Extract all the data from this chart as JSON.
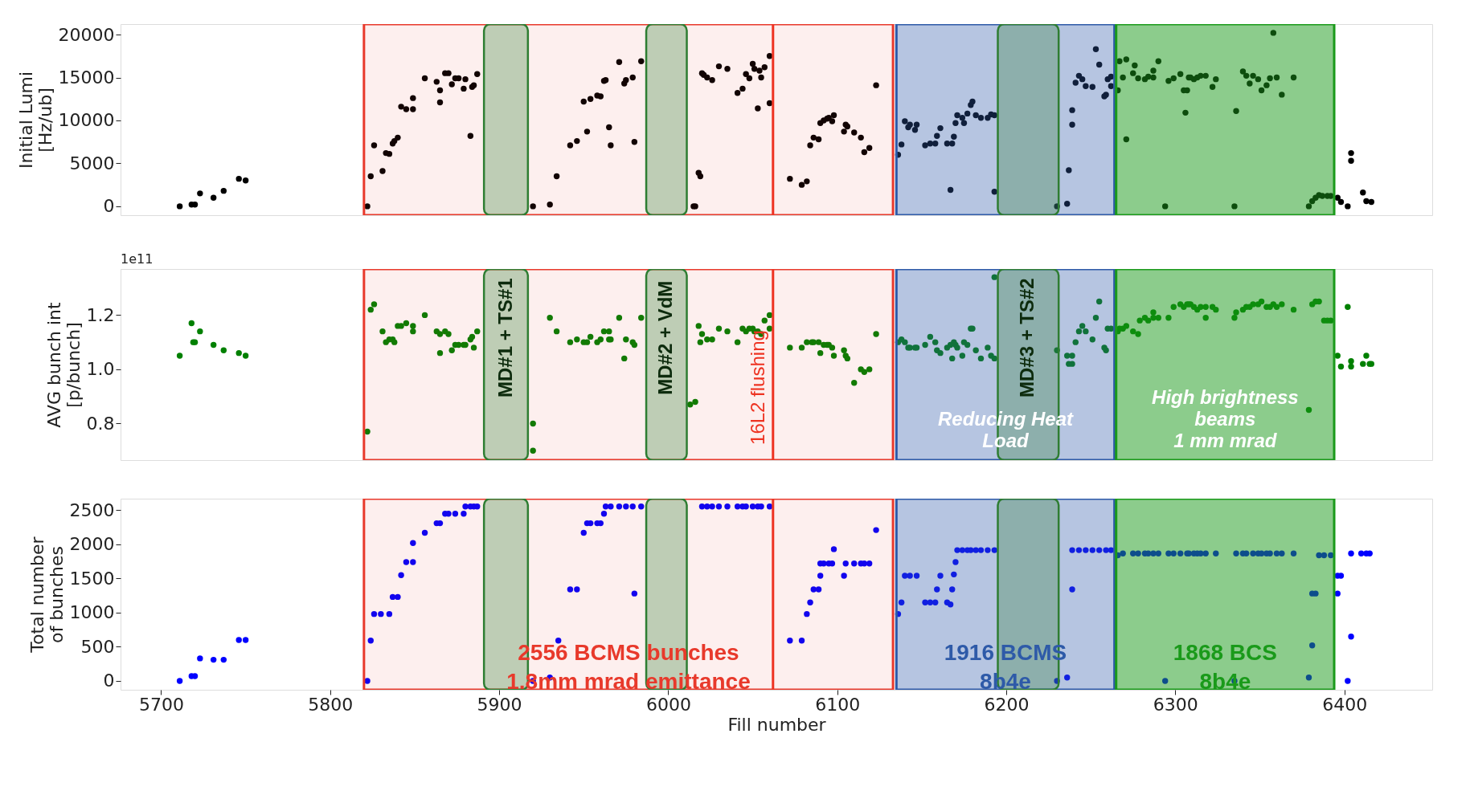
{
  "chart_data": [
    {
      "type": "scatter",
      "ylabel": "Initial Lumi\n[Hz/ub]",
      "color": "#000000",
      "marker": "circle",
      "xlim": [
        5676,
        6452
      ],
      "ylim": [
        -1040,
        21220
      ],
      "xticks": [
        5700,
        5800,
        5900,
        6000,
        6100,
        6200,
        6300,
        6400
      ],
      "yticks": [
        0,
        5000,
        10000,
        15000,
        20000
      ],
      "tick_labels": "y",
      "x": [
        5711,
        5718,
        5720,
        5723,
        5731,
        5737,
        5746,
        5750,
        5822,
        5824,
        5826,
        5831,
        5833,
        5835,
        5837,
        5838,
        5840,
        5842,
        5845,
        5849,
        5849,
        5856,
        5863,
        5865,
        5865,
        5868,
        5870,
        5872,
        5874,
        5876,
        5879,
        5880,
        5883,
        5884,
        5885,
        5887,
        5920,
        5930,
        5934,
        5942,
        5946,
        5950,
        5952,
        5954,
        5958,
        5960,
        5962,
        5963,
        5965,
        5966,
        5971,
        5974,
        5975,
        5979,
        5980,
        5984,
        6015,
        6016,
        6018,
        6019,
        6020,
        6021,
        6023,
        6026,
        6030,
        6035,
        6041,
        6044,
        6046,
        6048,
        6050,
        6051,
        6053,
        6054,
        6055,
        6057,
        6060,
        6060,
        6072,
        6079,
        6082,
        6084,
        6086,
        6089,
        6090,
        6092,
        6094,
        6095,
        6097,
        6098,
        6104,
        6105,
        6106,
        6110,
        6114,
        6116,
        6119,
        6123,
        6136,
        6138,
        6140,
        6142,
        6143,
        6146,
        6147,
        6152,
        6155,
        6158,
        6159,
        6161,
        6165,
        6167,
        6168,
        6169,
        6170,
        6171,
        6174,
        6175,
        6177,
        6179,
        6180,
        6182,
        6185,
        6189,
        6191,
        6193,
        6193,
        6230,
        6236,
        6237,
        6239,
        6239,
        6241,
        6243,
        6245,
        6247,
        6251,
        6253,
        6255,
        6258,
        6259,
        6260,
        6262,
        6262,
        6266,
        6267,
        6269,
        6271,
        6271,
        6275,
        6276,
        6278,
        6282,
        6284,
        6287,
        6287,
        6290,
        6294,
        6296,
        6299,
        6303,
        6305,
        6306,
        6307,
        6308,
        6309,
        6311,
        6313,
        6315,
        6318,
        6322,
        6324,
        6335,
        6336,
        6340,
        6342,
        6344,
        6346,
        6349,
        6351,
        6354,
        6356,
        6358,
        6360,
        6363,
        6370,
        6379,
        6381,
        6383,
        6385,
        6387,
        6390,
        6392,
        6396,
        6398,
        6402,
        6404,
        6404,
        6411,
        6413,
        6416
      ],
      "values": [
        0,
        200,
        200,
        1500,
        1000,
        1800,
        3200,
        3000,
        0,
        3500,
        7100,
        4100,
        6200,
        6100,
        7300,
        7600,
        8000,
        11600,
        11300,
        11300,
        12600,
        14900,
        14500,
        12100,
        13500,
        15500,
        15500,
        14200,
        14900,
        14900,
        13700,
        14800,
        8200,
        13900,
        14100,
        15400,
        0,
        200,
        3500,
        7100,
        7600,
        12200,
        8700,
        12500,
        12900,
        12800,
        14600,
        14700,
        9200,
        7100,
        16800,
        14300,
        14700,
        15000,
        7500,
        16900,
        0,
        0,
        3900,
        3500,
        15500,
        15300,
        15000,
        14700,
        16300,
        16000,
        13200,
        13700,
        15400,
        14900,
        16600,
        16000,
        11400,
        15800,
        15000,
        16200,
        12000,
        17500,
        3200,
        2500,
        2900,
        7100,
        8000,
        7800,
        9700,
        10000,
        10200,
        10300,
        9900,
        10600,
        8700,
        9500,
        9300,
        8600,
        8000,
        6300,
        6800,
        14100,
        6000,
        7200,
        9900,
        9200,
        9500,
        8900,
        9500,
        7100,
        7300,
        7300,
        8200,
        9100,
        7300,
        1900,
        7300,
        8100,
        9700,
        10600,
        10300,
        9700,
        10800,
        11800,
        12200,
        10600,
        10300,
        10300,
        10700,
        10600,
        1700,
        0,
        300,
        4200,
        9500,
        11200,
        14400,
        15200,
        14800,
        14000,
        13900,
        18300,
        16500,
        12800,
        13000,
        14800,
        14000,
        15100,
        13500,
        16900,
        15000,
        17100,
        7800,
        15500,
        16400,
        14900,
        14800,
        15100,
        15800,
        15000,
        16900,
        0,
        14600,
        14900,
        15400,
        13500,
        10900,
        13500,
        15000,
        15000,
        14800,
        15000,
        15200,
        15200,
        13900,
        14800,
        0,
        11100,
        15700,
        15200,
        14300,
        15200,
        14800,
        13500,
        14100,
        14900,
        20200,
        15000,
        13000,
        15000,
        0,
        600,
        1000,
        1300,
        1200,
        1200,
        1200,
        1000,
        500,
        0,
        5300,
        6200,
        1600,
        600,
        500
      ],
      "bands": [
        {
          "axis": "x",
          "from": 5820,
          "to": 6133,
          "color": "#e8392b"
        },
        {
          "axis": "x",
          "from": 6135,
          "to": 6264,
          "color": "#2e5aa8"
        },
        {
          "axis": "x",
          "from": 6265,
          "to": 6394,
          "color": "#1a9a1a"
        },
        {
          "axis": "x",
          "from": 5891,
          "to": 5917,
          "color": "#2e7d32"
        },
        {
          "axis": "x",
          "from": 5987,
          "to": 6011,
          "color": "#2e7d32"
        },
        {
          "axis": "x",
          "from": 6195,
          "to": 6231,
          "color": "#2e7d32"
        }
      ],
      "ref_lines": [
        {
          "axis": "x",
          "value": 6062,
          "color": "#ee3322"
        }
      ]
    },
    {
      "type": "scatter",
      "ylabel": "AVG bunch int\n[p/bunch]",
      "color": "#008000",
      "marker": "circle",
      "xlim": [
        5676,
        6452
      ],
      "ylim": [
        0.665,
        1.37
      ],
      "xticks": [
        5700,
        5800,
        5900,
        6000,
        6100,
        6200,
        6300,
        6400
      ],
      "yticks": [
        0.8,
        {
          "value": 1.0,
          "label": "1.0"
        },
        1.2
      ],
      "tick_labels": "y",
      "annotations": [
        "1e11"
      ],
      "x": [
        5711,
        5718,
        5719,
        5720,
        5723,
        5731,
        5737,
        5746,
        5750,
        5822,
        5824,
        5826,
        5831,
        5833,
        5835,
        5837,
        5838,
        5840,
        5842,
        5845,
        5849,
        5849,
        5856,
        5863,
        5865,
        5865,
        5868,
        5870,
        5872,
        5874,
        5876,
        5879,
        5880,
        5883,
        5884,
        5885,
        5887,
        5920,
        5920,
        5930,
        5934,
        5942,
        5946,
        5950,
        5952,
        5954,
        5958,
        5960,
        5962,
        5965,
        5965,
        5966,
        5971,
        5974,
        5975,
        5979,
        5980,
        5984,
        6013,
        6016,
        6018,
        6019,
        6020,
        6023,
        6026,
        6030,
        6035,
        6041,
        6044,
        6046,
        6048,
        6050,
        6051,
        6053,
        6055,
        6057,
        6060,
        6060,
        6072,
        6079,
        6082,
        6085,
        6086,
        6089,
        6090,
        6092,
        6094,
        6095,
        6097,
        6098,
        6104,
        6105,
        6106,
        6110,
        6114,
        6116,
        6119,
        6123,
        6136,
        6138,
        6140,
        6142,
        6143,
        6146,
        6147,
        6152,
        6155,
        6158,
        6159,
        6161,
        6165,
        6167,
        6168,
        6169,
        6170,
        6171,
        6174,
        6175,
        6177,
        6179,
        6180,
        6182,
        6185,
        6189,
        6191,
        6193,
        6193,
        6230,
        6236,
        6237,
        6239,
        6239,
        6241,
        6243,
        6245,
        6247,
        6251,
        6253,
        6255,
        6258,
        6259,
        6260,
        6262,
        6266,
        6267,
        6269,
        6271,
        6275,
        6278,
        6279,
        6282,
        6284,
        6287,
        6287,
        6290,
        6296,
        6299,
        6303,
        6305,
        6307,
        6308,
        6309,
        6311,
        6313,
        6315,
        6318,
        6318,
        6322,
        6324,
        6335,
        6336,
        6340,
        6342,
        6344,
        6346,
        6349,
        6351,
        6354,
        6356,
        6358,
        6360,
        6363,
        6370,
        6379,
        6381,
        6383,
        6385,
        6388,
        6390,
        6392,
        6396,
        6398,
        6402,
        6404,
        6404,
        6411,
        6413,
        6415,
        6416
      ],
      "values": [
        1.05,
        1.17,
        1.1,
        1.1,
        1.14,
        1.09,
        1.07,
        1.06,
        1.05,
        0.77,
        1.22,
        1.24,
        1.14,
        1.1,
        1.11,
        1.11,
        1.1,
        1.16,
        1.16,
        1.17,
        1.16,
        1.14,
        1.2,
        1.14,
        1.06,
        1.13,
        1.14,
        1.13,
        1.07,
        1.09,
        1.09,
        1.09,
        1.09,
        1.11,
        1.12,
        1.08,
        1.14,
        0.8,
        0.7,
        1.19,
        1.14,
        1.1,
        1.11,
        1.1,
        1.1,
        1.12,
        1.1,
        1.11,
        1.14,
        1.14,
        1.11,
        1.11,
        1.19,
        1.04,
        1.11,
        1.1,
        1.09,
        1.19,
        0.87,
        0.88,
        1.16,
        1.1,
        1.13,
        1.11,
        1.11,
        1.15,
        1.14,
        1.1,
        1.15,
        1.14,
        1.15,
        1.15,
        1.14,
        1.14,
        1.13,
        1.18,
        1.15,
        1.2,
        1.08,
        1.08,
        1.1,
        1.1,
        1.1,
        1.1,
        1.06,
        1.09,
        1.09,
        1.09,
        1.08,
        1.05,
        1.07,
        1.05,
        1.04,
        0.95,
        1.0,
        0.99,
        1.0,
        1.13,
        1.1,
        1.11,
        1.1,
        1.08,
        1.08,
        1.08,
        1.08,
        1.09,
        1.12,
        1.1,
        1.07,
        1.06,
        1.08,
        1.09,
        1.04,
        1.1,
        1.09,
        1.08,
        1.05,
        1.1,
        1.09,
        1.15,
        1.15,
        1.07,
        1.04,
        1.08,
        1.05,
        1.04,
        1.34,
        1.07,
        1.05,
        1.02,
        1.05,
        1.02,
        1.1,
        1.14,
        1.16,
        1.14,
        1.11,
        1.19,
        1.25,
        1.08,
        1.07,
        1.15,
        1.15,
        1.14,
        1.15,
        1.15,
        1.16,
        1.14,
        1.13,
        1.18,
        1.19,
        1.18,
        1.21,
        1.19,
        1.19,
        1.19,
        1.23,
        1.24,
        1.23,
        1.24,
        1.24,
        1.24,
        1.23,
        1.22,
        1.23,
        1.19,
        1.23,
        1.23,
        1.22,
        1.19,
        1.21,
        1.22,
        1.23,
        1.23,
        1.24,
        1.24,
        1.25,
        1.23,
        1.23,
        1.24,
        1.23,
        1.24,
        1.22,
        0.85,
        1.24,
        1.25,
        1.25,
        1.18,
        1.18,
        1.18,
        1.05,
        1.01,
        1.23,
        1.03,
        1.01,
        1.02,
        1.05,
        1.02,
        1.02
      ],
      "bands": [
        {
          "axis": "x",
          "from": 5820,
          "to": 6133,
          "color": "#e8392b"
        },
        {
          "axis": "x",
          "from": 6135,
          "to": 6264,
          "color": "#2e5aa8",
          "label": "Reducing Heat\nLoad"
        },
        {
          "axis": "x",
          "from": 6265,
          "to": 6394,
          "color": "#1a9a1a",
          "label": "High brightness\nbeams\n1 mm mrad"
        },
        {
          "axis": "x",
          "from": 5891,
          "to": 5917,
          "color": "#2e7d32",
          "label": "MD#1 + TS#1"
        },
        {
          "axis": "x",
          "from": 5987,
          "to": 6011,
          "color": "#2e7d32",
          "label": "MD#2 + VdM"
        },
        {
          "axis": "x",
          "from": 6195,
          "to": 6231,
          "color": "#2e7d32",
          "label": "MD#3 + TS#2"
        }
      ],
      "ref_lines": [
        {
          "axis": "x",
          "value": 6062,
          "color": "#ee3322",
          "label": "16L2 flushing"
        }
      ]
    },
    {
      "type": "scatter",
      "xlabel": "Fill number",
      "ylabel": "Total number\nof bunches",
      "color": "#0000ff",
      "marker": "circle",
      "xlim": [
        5676,
        6452
      ],
      "ylim": [
        -130,
        2670
      ],
      "xticks": [
        5700,
        5800,
        5900,
        6000,
        6100,
        6200,
        6300,
        6400
      ],
      "yticks": [
        0,
        500,
        1000,
        1500,
        2000,
        2500
      ],
      "x": [
        5711,
        5718,
        5720,
        5723,
        5731,
        5737,
        5746,
        5750,
        5822,
        5824,
        5826,
        5830,
        5835,
        5837,
        5840,
        5842,
        5845,
        5849,
        5849,
        5856,
        5863,
        5865,
        5868,
        5870,
        5874,
        5879,
        5880,
        5883,
        5885,
        5887,
        5920,
        5930,
        5935,
        5942,
        5946,
        5950,
        5952,
        5954,
        5958,
        5960,
        5962,
        5963,
        5966,
        5971,
        5975,
        5979,
        5980,
        5984,
        6020,
        6023,
        6026,
        6030,
        6035,
        6041,
        6044,
        6046,
        6050,
        6053,
        6055,
        6060,
        6072,
        6079,
        6082,
        6084,
        6086,
        6089,
        6090,
        6090,
        6092,
        6095,
        6097,
        6098,
        6104,
        6105,
        6110,
        6114,
        6116,
        6119,
        6123,
        6136,
        6138,
        6140,
        6143,
        6147,
        6152,
        6155,
        6158,
        6159,
        6161,
        6165,
        6167,
        6168,
        6169,
        6170,
        6171,
        6174,
        6177,
        6179,
        6182,
        6185,
        6189,
        6193,
        6230,
        6236,
        6239,
        6239,
        6243,
        6247,
        6251,
        6255,
        6259,
        6262,
        6266,
        6269,
        6275,
        6278,
        6282,
        6284,
        6287,
        6290,
        6294,
        6296,
        6299,
        6303,
        6307,
        6308,
        6311,
        6313,
        6315,
        6318,
        6324,
        6335,
        6336,
        6340,
        6342,
        6346,
        6349,
        6351,
        6354,
        6356,
        6360,
        6363,
        6370,
        6379,
        6381,
        6381,
        6383,
        6385,
        6388,
        6392,
        6396,
        6396,
        6398,
        6402,
        6404,
        6404,
        6410,
        6413,
        6415
      ],
      "values": [
        0,
        70,
        70,
        330,
        310,
        310,
        600,
        600,
        0,
        590,
        980,
        980,
        980,
        1230,
        1230,
        1550,
        1740,
        1740,
        2020,
        2170,
        2310,
        2310,
        2450,
        2450,
        2450,
        2450,
        2556,
        2556,
        2556,
        2556,
        0,
        50,
        590,
        1340,
        1340,
        2170,
        2310,
        2310,
        2310,
        2310,
        2450,
        2556,
        2556,
        2556,
        2556,
        2556,
        1280,
        2556,
        2556,
        2556,
        2556,
        2556,
        2556,
        2556,
        2556,
        2556,
        2556,
        2556,
        2556,
        2556,
        590,
        590,
        980,
        1150,
        1340,
        1340,
        1540,
        1720,
        1720,
        1720,
        1720,
        1930,
        1540,
        1720,
        1720,
        1720,
        1720,
        1720,
        2210,
        980,
        1150,
        1540,
        1540,
        1540,
        1150,
        1150,
        1150,
        1340,
        1540,
        1150,
        1120,
        1340,
        1560,
        1740,
        1916,
        1916,
        1916,
        1916,
        1916,
        1916,
        1916,
        1916,
        0,
        50,
        1340,
        1916,
        1916,
        1916,
        1916,
        1916,
        1916,
        1916,
        1840,
        1868,
        1868,
        1868,
        1868,
        1868,
        1868,
        1868,
        0,
        1868,
        1868,
        1868,
        1868,
        1868,
        1868,
        1868,
        1868,
        1868,
        1868,
        0,
        1868,
        1868,
        1868,
        1868,
        1868,
        1868,
        1868,
        1868,
        1868,
        1868,
        1868,
        50,
        520,
        1280,
        1280,
        1840,
        1840,
        1840,
        1280,
        1540,
        1540,
        0,
        650,
        1868,
        1868,
        1868,
        1868
      ],
      "bands": [
        {
          "axis": "x",
          "from": 5820,
          "to": 6133,
          "color": "#e8392b",
          "label": "2556 BCMS bunches\n1.8mm mrad emittance"
        },
        {
          "axis": "x",
          "from": 6135,
          "to": 6264,
          "color": "#2e5aa8",
          "label": "1916 BCMS\n8b4e"
        },
        {
          "axis": "x",
          "from": 6265,
          "to": 6394,
          "color": "#1a9a1a",
          "label": "1868 BCS\n8b4e"
        },
        {
          "axis": "x",
          "from": 5891,
          "to": 5917,
          "color": "#2e7d32"
        },
        {
          "axis": "x",
          "from": 5987,
          "to": 6011,
          "color": "#2e7d32"
        },
        {
          "axis": "x",
          "from": 6195,
          "to": 6231,
          "color": "#2e7d32"
        }
      ],
      "ref_lines": [
        {
          "axis": "x",
          "value": 6062,
          "color": "#ee3322"
        }
      ]
    }
  ]
}
